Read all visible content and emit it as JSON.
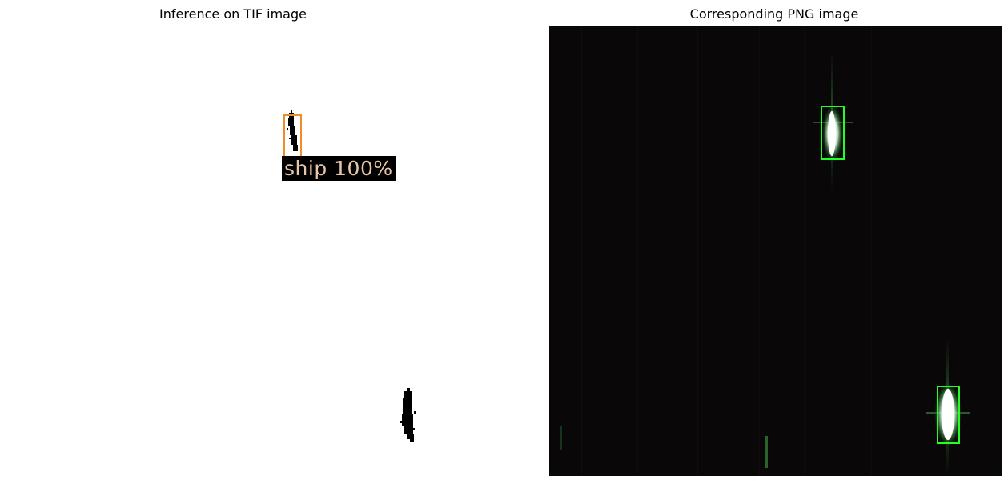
{
  "figure": {
    "left_panel": {
      "title": "Inference on TIF image",
      "detection_label": "ship 100%",
      "box_color": "#f28c28"
    },
    "right_panel": {
      "title": "Corresponding PNG image",
      "box_color": "#22ff22",
      "background_color": "#090707"
    }
  }
}
